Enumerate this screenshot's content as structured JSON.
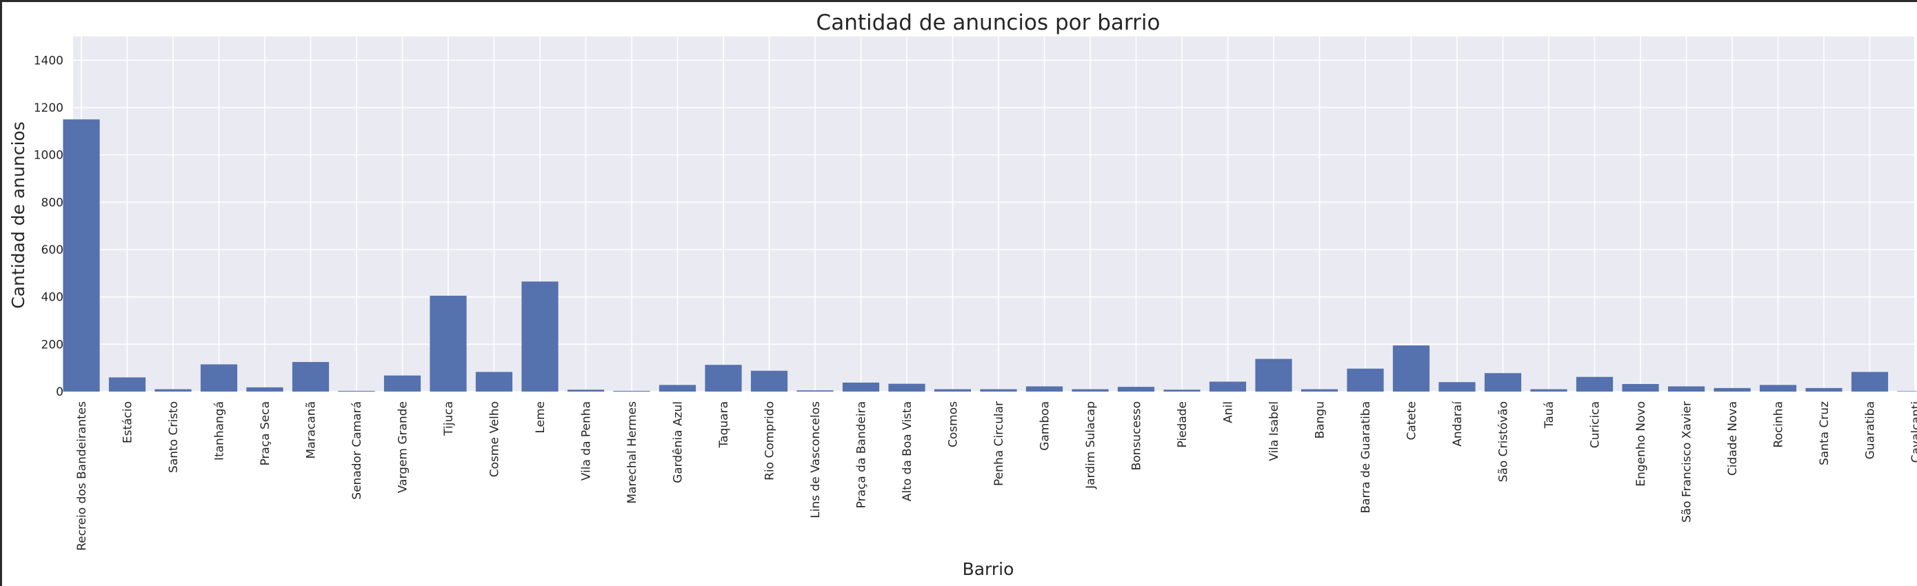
{
  "chart_data": {
    "type": "bar",
    "title": "Cantidad de anuncios por barrio",
    "xlabel": "Barrio",
    "ylabel": "Cantidad de anuncios",
    "ylim": [
      0,
      1500
    ],
    "yticks": [
      0,
      200,
      400,
      600,
      800,
      1000,
      1200,
      1400
    ],
    "grid": true,
    "bar_color": "#5572ae",
    "background_color": "#eaeaf2",
    "categories": [
      "Recreio dos Bandeirantes",
      "Estácio",
      "Santo Cristo",
      "Itanhangá",
      "Praça Seca",
      "Maracanã",
      "Senador Camará",
      "Vargem Grande",
      "Tijuca",
      "Cosme Velho",
      "Leme",
      "Vila da Penha",
      "Marechal Hermes",
      "Gardênia Azul",
      "Taquara",
      "Rio Comprido",
      "Lins de Vasconcelos",
      "Praça da Bandeira",
      "Alto da Boa Vista",
      "Cosmos",
      "Penha Circular",
      "Gamboa",
      "Jardim Sulacap",
      "Bonsucesso",
      "Piedade",
      "Anil",
      "Vila Isabel",
      "Bangu",
      "Barra de Guaratiba",
      "Catete",
      "Andaraí",
      "São Cristóvão",
      "Tauá",
      "Curicica",
      "Engenho Novo",
      "São Francisco Xavier",
      "Cidade Nova",
      "Rocinha",
      "Santa Cruz",
      "Guaratiba",
      "Cavalcanti"
    ],
    "values": [
      1150,
      60,
      10,
      115,
      18,
      125,
      3,
      68,
      405,
      83,
      465,
      8,
      3,
      28,
      113,
      88,
      5,
      38,
      33,
      10,
      10,
      22,
      10,
      20,
      8,
      42,
      138,
      10,
      97,
      195,
      40,
      78,
      10,
      62,
      32,
      22,
      15,
      28,
      15,
      83,
      2
    ]
  }
}
